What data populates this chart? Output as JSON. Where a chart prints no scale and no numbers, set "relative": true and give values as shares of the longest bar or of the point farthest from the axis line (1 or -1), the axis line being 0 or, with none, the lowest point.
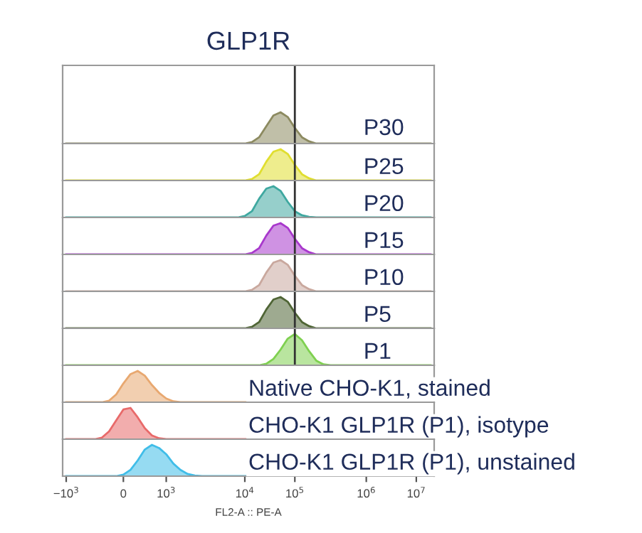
{
  "chart_data": [
    {
      "type": "area",
      "title": "GLP1R",
      "relative": true,
      "tick_labels": false,
      "ref_lines": [
        {
          "axis": "x",
          "value": "10$^{5}$"
        }
      ],
      "categories": [
        "−10$^{3}$",
        null,
        null,
        null,
        null,
        null,
        null,
        null,
        "0",
        null,
        null,
        null,
        null,
        null,
        "10$^{3}$",
        null,
        null,
        null,
        null,
        null,
        null,
        null,
        null,
        null,
        null,
        "10$^{4}$",
        null,
        null,
        null,
        null,
        null,
        null,
        "10$^{5}$",
        null,
        null,
        null,
        null,
        null,
        null,
        null,
        null,
        null,
        "10$^{6}$",
        null,
        null,
        null,
        null,
        null,
        null,
        "10$^{7}$",
        null,
        null
      ],
      "series": [
        {
          "name": "P30",
          "color": "#8c8a60",
          "values": [
            0,
            0,
            0,
            0,
            0,
            0,
            0,
            0,
            0,
            0,
            0,
            0,
            0,
            0,
            0,
            0,
            0,
            0,
            0,
            0,
            0,
            0,
            0,
            0,
            0,
            0,
            0.05,
            0.2,
            0.55,
            0.9,
            1,
            0.85,
            0.5,
            0.2,
            0.07,
            0,
            0,
            0,
            0,
            0,
            0,
            0,
            0,
            0,
            0,
            0,
            0,
            0,
            0,
            0,
            0,
            0
          ]
        }
      ]
    },
    {
      "type": "area",
      "relative": true,
      "tick_labels": false,
      "ref_lines": [
        {
          "axis": "x",
          "value": "10$^{5}$"
        }
      ],
      "categories": [
        "−10$^{3}$",
        null,
        null,
        null,
        null,
        null,
        null,
        null,
        "0",
        null,
        null,
        null,
        null,
        null,
        "10$^{3}$",
        null,
        null,
        null,
        null,
        null,
        null,
        null,
        null,
        null,
        null,
        "10$^{4}$",
        null,
        null,
        null,
        null,
        null,
        null,
        "10$^{5}$",
        null,
        null,
        null,
        null,
        null,
        null,
        null,
        null,
        null,
        "10$^{6}$",
        null,
        null,
        null,
        null,
        null,
        null,
        "10$^{7}$",
        null,
        null
      ],
      "series": [
        {
          "name": "P25",
          "color": "#e0de30",
          "values": [
            0,
            0,
            0,
            0,
            0,
            0,
            0,
            0,
            0,
            0,
            0,
            0,
            0,
            0,
            0,
            0,
            0,
            0,
            0,
            0,
            0,
            0,
            0,
            0,
            0,
            0,
            0.05,
            0.2,
            0.6,
            0.92,
            1,
            0.85,
            0.5,
            0.2,
            0.07,
            0,
            0,
            0,
            0,
            0,
            0,
            0,
            0,
            0,
            0,
            0,
            0,
            0,
            0,
            0,
            0,
            0
          ]
        }
      ]
    },
    {
      "type": "area",
      "relative": true,
      "tick_labels": false,
      "ref_lines": [
        {
          "axis": "x",
          "value": "10$^{5}$"
        }
      ],
      "categories": [
        "−10$^{3}$",
        null,
        null,
        null,
        null,
        null,
        null,
        null,
        "0",
        null,
        null,
        null,
        null,
        null,
        "10$^{3}$",
        null,
        null,
        null,
        null,
        null,
        null,
        null,
        null,
        null,
        null,
        "10$^{4}$",
        null,
        null,
        null,
        null,
        null,
        null,
        "10$^{5}$",
        null,
        null,
        null,
        null,
        null,
        null,
        null,
        null,
        null,
        "10$^{6}$",
        null,
        null,
        null,
        null,
        null,
        null,
        "10$^{7}$",
        null,
        null
      ],
      "series": [
        {
          "name": "P20",
          "color": "#3fa8a0",
          "values": [
            0,
            0,
            0,
            0,
            0,
            0,
            0,
            0,
            0,
            0,
            0,
            0,
            0,
            0,
            0,
            0,
            0,
            0,
            0,
            0,
            0,
            0,
            0,
            0,
            0,
            0.05,
            0.2,
            0.6,
            0.92,
            1,
            0.85,
            0.5,
            0.2,
            0.07,
            0.02,
            0,
            0,
            0,
            0,
            0,
            0,
            0,
            0,
            0,
            0,
            0,
            0,
            0,
            0,
            0,
            0,
            0
          ]
        }
      ]
    },
    {
      "type": "area",
      "relative": true,
      "tick_labels": false,
      "ref_lines": [
        {
          "axis": "x",
          "value": "10$^{5}$"
        }
      ],
      "categories": [
        "−10$^{3}$",
        null,
        null,
        null,
        null,
        null,
        null,
        null,
        "0",
        null,
        null,
        null,
        null,
        null,
        "10$^{3}$",
        null,
        null,
        null,
        null,
        null,
        null,
        null,
        null,
        null,
        null,
        "10$^{4}$",
        null,
        null,
        null,
        null,
        null,
        null,
        "10$^{5}$",
        null,
        null,
        null,
        null,
        null,
        null,
        null,
        null,
        null,
        "10$^{6}$",
        null,
        null,
        null,
        null,
        null,
        null,
        "10$^{7}$",
        null,
        null
      ],
      "series": [
        {
          "name": "P15",
          "color": "#a838cc",
          "values": [
            0,
            0,
            0,
            0,
            0,
            0,
            0,
            0,
            0,
            0,
            0,
            0,
            0,
            0,
            0,
            0,
            0,
            0,
            0,
            0,
            0,
            0,
            0,
            0,
            0,
            0,
            0.05,
            0.2,
            0.6,
            0.92,
            1,
            0.85,
            0.5,
            0.2,
            0.07,
            0,
            0,
            0,
            0,
            0,
            0,
            0,
            0,
            0,
            0,
            0,
            0,
            0,
            0,
            0,
            0,
            0
          ]
        }
      ]
    },
    {
      "type": "area",
      "relative": true,
      "tick_labels": false,
      "ref_lines": [
        {
          "axis": "x",
          "value": "10$^{5}$"
        }
      ],
      "categories": [
        "−10$^{3}$",
        null,
        null,
        null,
        null,
        null,
        null,
        null,
        "0",
        null,
        null,
        null,
        null,
        null,
        "10$^{3}$",
        null,
        null,
        null,
        null,
        null,
        null,
        null,
        null,
        null,
        null,
        "10$^{4}$",
        null,
        null,
        null,
        null,
        null,
        null,
        "10$^{5}$",
        null,
        null,
        null,
        null,
        null,
        null,
        null,
        null,
        null,
        "10$^{6}$",
        null,
        null,
        null,
        null,
        null,
        null,
        "10$^{7}$",
        null,
        null
      ],
      "series": [
        {
          "name": "P10",
          "color": "#c9a89e",
          "values": [
            0,
            0,
            0,
            0,
            0,
            0,
            0,
            0,
            0,
            0,
            0,
            0,
            0,
            0,
            0,
            0,
            0,
            0,
            0,
            0,
            0,
            0,
            0,
            0,
            0,
            0,
            0.05,
            0.2,
            0.6,
            0.92,
            1,
            0.85,
            0.5,
            0.2,
            0.07,
            0,
            0,
            0,
            0,
            0,
            0,
            0,
            0,
            0,
            0,
            0,
            0,
            0,
            0,
            0,
            0,
            0
          ]
        }
      ]
    },
    {
      "type": "area",
      "relative": true,
      "tick_labels": false,
      "ref_lines": [
        {
          "axis": "x",
          "value": "10$^{5}$"
        }
      ],
      "categories": [
        "−10$^{3}$",
        null,
        null,
        null,
        null,
        null,
        null,
        null,
        "0",
        null,
        null,
        null,
        null,
        null,
        "10$^{3}$",
        null,
        null,
        null,
        null,
        null,
        null,
        null,
        null,
        null,
        null,
        "10$^{4}$",
        null,
        null,
        null,
        null,
        null,
        null,
        "10$^{5}$",
        null,
        null,
        null,
        null,
        null,
        null,
        null,
        null,
        null,
        "10$^{6}$",
        null,
        null,
        null,
        null,
        null,
        null,
        "10$^{7}$",
        null,
        null
      ],
      "series": [
        {
          "name": "P5",
          "color": "#4f6535",
          "values": [
            0,
            0,
            0,
            0,
            0,
            0,
            0,
            0,
            0,
            0,
            0,
            0,
            0,
            0,
            0,
            0,
            0,
            0,
            0,
            0,
            0,
            0,
            0,
            0,
            0,
            0,
            0.05,
            0.2,
            0.6,
            0.92,
            1,
            0.85,
            0.5,
            0.2,
            0.07,
            0,
            0,
            0,
            0,
            0,
            0,
            0,
            0,
            0,
            0,
            0,
            0,
            0,
            0,
            0,
            0,
            0
          ]
        }
      ]
    },
    {
      "type": "area",
      "relative": true,
      "tick_labels": false,
      "ref_lines": [
        {
          "axis": "x",
          "value": "10$^{5}$"
        }
      ],
      "categories": [
        "−10$^{3}$",
        null,
        null,
        null,
        null,
        null,
        null,
        null,
        "0",
        null,
        null,
        null,
        null,
        null,
        "10$^{3}$",
        null,
        null,
        null,
        null,
        null,
        null,
        null,
        null,
        null,
        null,
        "10$^{4}$",
        null,
        null,
        null,
        null,
        null,
        null,
        "10$^{5}$",
        null,
        null,
        null,
        null,
        null,
        null,
        null,
        null,
        null,
        "10$^{6}$",
        null,
        null,
        null,
        null,
        null,
        null,
        "10$^{7}$",
        null,
        null
      ],
      "series": [
        {
          "name": "P1",
          "color": "#7fd050",
          "values": [
            0,
            0,
            0,
            0,
            0,
            0,
            0,
            0,
            0,
            0,
            0,
            0,
            0,
            0,
            0,
            0,
            0,
            0,
            0,
            0,
            0,
            0,
            0,
            0,
            0,
            0,
            0,
            0,
            0.05,
            0.2,
            0.5,
            0.85,
            1,
            0.8,
            0.45,
            0.15,
            0.03,
            0,
            0,
            0,
            0,
            0,
            0,
            0,
            0,
            0,
            0,
            0,
            0,
            0,
            0,
            0
          ]
        }
      ]
    },
    {
      "type": "area",
      "relative": true,
      "tick_labels": false,
      "categories": [
        "−10$^{3}$",
        null,
        null,
        null,
        null,
        null,
        null,
        null,
        "0",
        null,
        null,
        null,
        null,
        null,
        "10$^{3}$",
        null,
        null,
        null,
        null,
        null,
        null,
        null,
        null,
        null,
        null,
        "10$^{4}$",
        null,
        null,
        null,
        null,
        null,
        null,
        "10$^{5}$",
        null,
        null,
        null,
        null,
        null,
        null,
        null,
        null,
        null,
        "10$^{6}$",
        null,
        null,
        null,
        null,
        null,
        null,
        "10$^{7}$",
        null,
        null
      ],
      "series": [
        {
          "name": "Native CHO-K1, stained",
          "color": "#e8a870",
          "values": [
            0,
            0,
            0,
            0,
            0,
            0,
            0.05,
            0.25,
            0.6,
            0.9,
            1,
            0.85,
            0.55,
            0.3,
            0.12,
            0.03,
            0,
            0,
            0,
            0,
            0,
            0,
            0,
            0,
            0,
            0,
            0,
            0,
            0,
            0,
            0,
            0,
            0,
            0,
            0,
            0,
            0,
            0,
            0,
            0,
            0,
            0,
            0,
            0,
            0,
            0,
            0,
            0,
            0,
            0,
            0,
            0
          ]
        }
      ]
    },
    {
      "type": "area",
      "relative": true,
      "tick_labels": false,
      "categories": [
        "−10$^{3}$",
        null,
        null,
        null,
        null,
        null,
        null,
        null,
        "0",
        null,
        null,
        null,
        null,
        null,
        "10$^{3}$",
        null,
        null,
        null,
        null,
        null,
        null,
        null,
        null,
        null,
        null,
        "10$^{4}$",
        null,
        null,
        null,
        null,
        null,
        null,
        "10$^{5}$",
        null,
        null,
        null,
        null,
        null,
        null,
        null,
        null,
        null,
        "10$^{6}$",
        null,
        null,
        null,
        null,
        null,
        null,
        "10$^{7}$",
        null,
        null
      ],
      "series": [
        {
          "name": "CHO-K1 GLP1R (P1), isotype",
          "color": "#e86a6a",
          "values": [
            0,
            0,
            0,
            0,
            0,
            0.05,
            0.25,
            0.6,
            0.95,
            1,
            0.7,
            0.35,
            0.12,
            0.03,
            0,
            0,
            0,
            0,
            0,
            0,
            0,
            0,
            0,
            0,
            0,
            0,
            0,
            0,
            0,
            0,
            0,
            0,
            0,
            0,
            0,
            0,
            0,
            0,
            0,
            0,
            0,
            0,
            0,
            0,
            0,
            0,
            0,
            0,
            0,
            0,
            0,
            0
          ]
        }
      ]
    },
    {
      "type": "area",
      "relative": true,
      "tick_labels": "x",
      "xlabel": "FL2-A :: PE-A",
      "categories": [
        "−10$^{3}$",
        null,
        null,
        null,
        null,
        null,
        null,
        null,
        "0",
        null,
        null,
        null,
        null,
        null,
        "10$^{3}$",
        null,
        null,
        null,
        null,
        null,
        null,
        null,
        null,
        null,
        null,
        "10$^{4}$",
        null,
        null,
        null,
        null,
        null,
        null,
        "10$^{5}$",
        null,
        null,
        null,
        null,
        null,
        null,
        null,
        null,
        null,
        "10$^{6}$",
        null,
        null,
        null,
        null,
        null,
        null,
        "10$^{7}$",
        null,
        null
      ],
      "series": [
        {
          "name": "CHO-K1 GLP1R (P1), unstained",
          "color": "#40bde8",
          "values": [
            0,
            0,
            0,
            0,
            0,
            0,
            0,
            0,
            0.05,
            0.2,
            0.5,
            0.85,
            1,
            0.9,
            0.7,
            0.4,
            0.2,
            0.07,
            0.02,
            0,
            0,
            0,
            0,
            0,
            0,
            0,
            0,
            0,
            0,
            0,
            0,
            0,
            0,
            0,
            0,
            0,
            0,
            0,
            0,
            0,
            0,
            0,
            0,
            0,
            0,
            0,
            0,
            0,
            0,
            0,
            0,
            0
          ]
        }
      ]
    }
  ]
}
